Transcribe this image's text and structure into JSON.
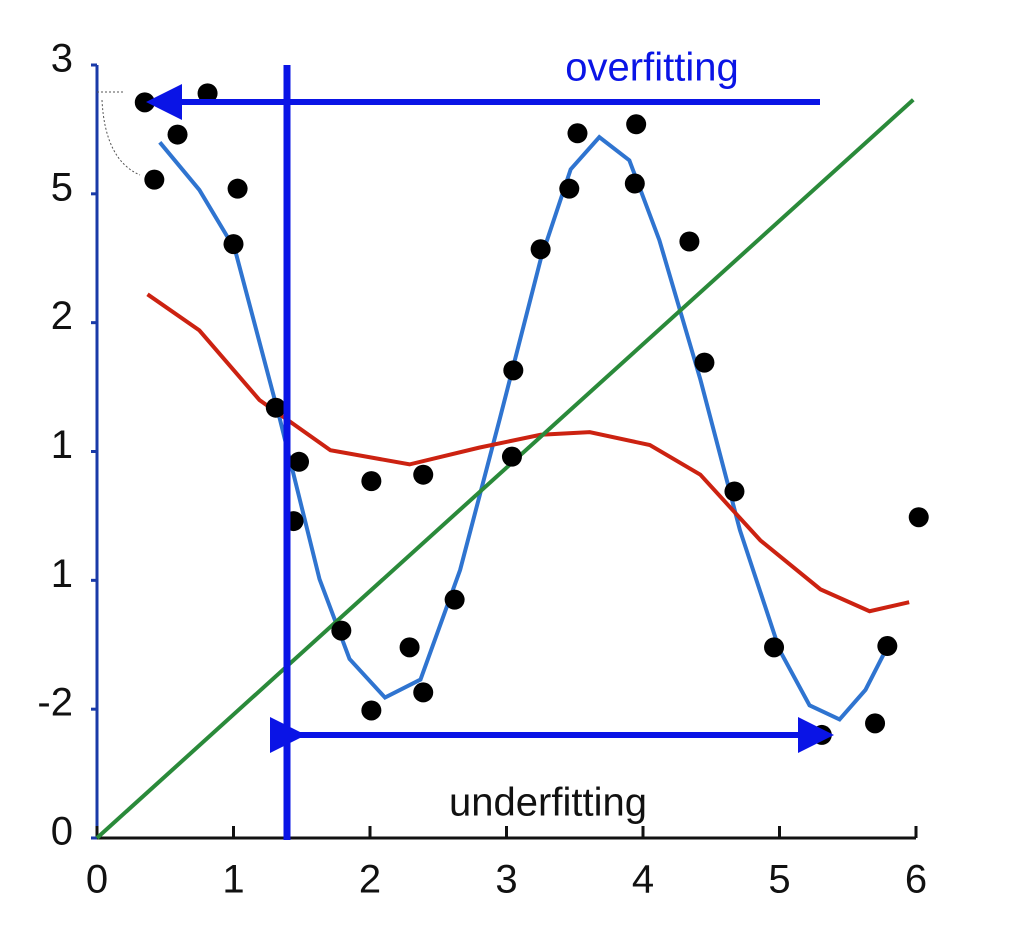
{
  "chart_data": {
    "type": "scatter",
    "x": [
      0.35,
      0.42,
      0.59,
      0.81,
      1.03,
      1.0,
      1.31,
      1.48,
      1.44,
      1.79,
      2.01,
      2.01,
      2.29,
      2.39,
      2.39,
      2.62,
      3.04,
      3.05,
      3.25,
      3.46,
      3.52,
      3.94,
      3.95,
      4.34,
      4.45,
      4.67,
      4.96,
      5.31,
      5.7,
      5.79,
      6.02
    ],
    "values": [
      5.71,
      5.11,
      5.46,
      5.78,
      5.04,
      4.61,
      3.34,
      2.92,
      2.46,
      1.61,
      2.77,
      0.99,
      1.48,
      2.82,
      1.13,
      1.85,
      2.96,
      3.63,
      4.57,
      5.04,
      5.47,
      5.08,
      5.54,
      4.63,
      3.69,
      2.69,
      1.48,
      0.8,
      0.89,
      1.49,
      2.49
    ],
    "color": "#000000",
    "lines": [
      {
        "color": "#2f74d0",
        "x": [
          0.46,
          0.75,
          1.01,
          1.34,
          1.63,
          1.85,
          2.11,
          2.37,
          2.66,
          2.95,
          3.25,
          3.47,
          3.68,
          3.9,
          4.12,
          4.42,
          4.71,
          5.0,
          5.22,
          5.44,
          5.63,
          5.76
        ],
        "values": [
          5.4,
          5.03,
          4.57,
          3.25,
          2.01,
          1.39,
          1.09,
          1.23,
          2.08,
          3.25,
          4.49,
          5.19,
          5.44,
          5.26,
          4.64,
          3.56,
          2.39,
          1.46,
          1.03,
          0.92,
          1.15,
          1.42
        ]
      },
      {
        "color": "#cc2211",
        "x": [
          0.37,
          0.75,
          1.19,
          1.71,
          2.29,
          2.8,
          3.25,
          3.61,
          4.05,
          4.42,
          4.86,
          5.3,
          5.66,
          5.95
        ],
        "values": [
          4.22,
          3.94,
          3.4,
          3.01,
          2.9,
          3.03,
          3.13,
          3.15,
          3.05,
          2.82,
          2.31,
          1.93,
          1.76,
          1.83
        ]
      },
      {
        "color": "#2a8a3a",
        "x": [
          0,
          5.98
        ],
        "values": [
          0,
          5.73
        ]
      }
    ],
    "xlim": [
      0,
      6
    ],
    "ylim": [
      0,
      6
    ],
    "xticks": [
      0,
      1,
      2,
      3,
      4,
      5,
      6
    ],
    "yticks": [
      0,
      {
        "value": 1,
        "label": "-2"
      },
      {
        "value": 2,
        "label": "1"
      },
      {
        "value": 3,
        "label": "1"
      },
      {
        "value": 4,
        "label": "2"
      },
      {
        "value": 5,
        "label": "5"
      },
      {
        "value": 6,
        "label": "3"
      }
    ],
    "annotations": [
      "overfitting",
      "underfitting"
    ]
  }
}
